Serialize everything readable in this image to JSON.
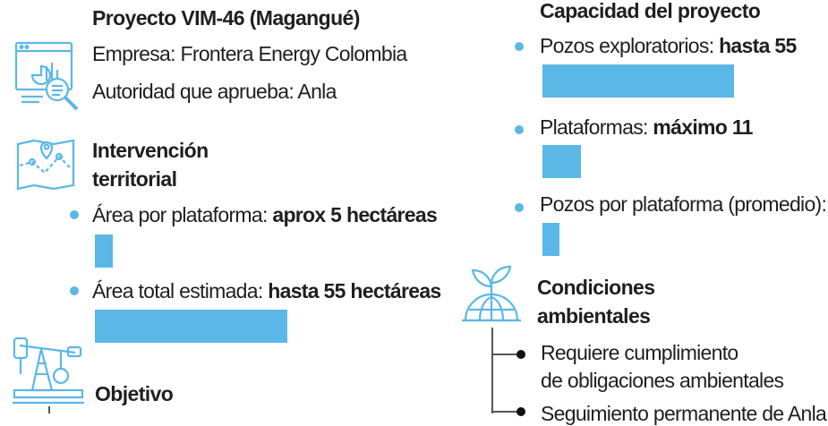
{
  "project": {
    "title": "Proyecto VIM-46 (Magangué)",
    "company": "Empresa: Frontera Energy Colombia",
    "authority": "Autoridad que aprueba: Anla"
  },
  "territorial": {
    "title_line1": "Intervención",
    "title_line2": "territorial",
    "items": [
      {
        "label": "Área por plataforma: ",
        "value": "aprox 5 hectáreas",
        "amount": 5
      },
      {
        "label": "Área total estimada: ",
        "value": "hasta 55 hectáreas",
        "amount": 55
      }
    ]
  },
  "objective": {
    "title": "Objetivo"
  },
  "capacity": {
    "title": "Capacidad del proyecto",
    "items": [
      {
        "label": "Pozos exploratorios: ",
        "value": "hasta 55",
        "amount": 55
      },
      {
        "label": "Plataformas: ",
        "value": "máximo 11",
        "amount": 11
      },
      {
        "label": "Pozos por plataforma (promedio): ",
        "value": "5",
        "amount": 5
      }
    ]
  },
  "environment": {
    "title_line1": "Condiciones",
    "title_line2": "ambientales",
    "items": [
      {
        "line1": "Requiere cumplimiento",
        "line2": "de obligaciones ambientales"
      },
      {
        "line1": "Seguimiento permanente de Anla"
      }
    ]
  },
  "colors": {
    "accent": "#5BB8E6",
    "text": "#1f1f1f"
  },
  "icons": [
    "report-chart-icon",
    "map-pin-icon",
    "oil-pump-icon",
    "plant-globe-icon"
  ]
}
